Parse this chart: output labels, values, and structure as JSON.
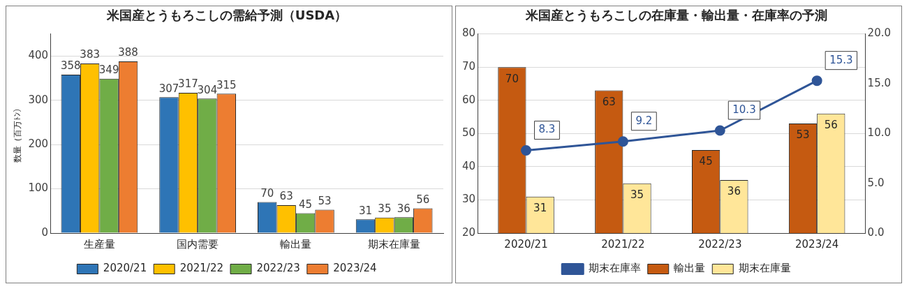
{
  "chart_data": [
    {
      "type": "bar",
      "title": "米国産とうもろこしの需給予測（USDA）",
      "ylabel": "数量（百万ﾄﾝ）",
      "categories": [
        "生産量",
        "国内需要",
        "輸出量",
        "期末在庫量"
      ],
      "series": [
        {
          "name": "2020/21",
          "color": "#2e75b6",
          "values": [
            358,
            307,
            70,
            31
          ]
        },
        {
          "name": "2021/22",
          "color": "#ffc000",
          "values": [
            383,
            317,
            63,
            35
          ]
        },
        {
          "name": "2022/23",
          "color": "#70ad47",
          "values": [
            349,
            304,
            45,
            36
          ]
        },
        {
          "name": "2023/24",
          "color": "#ed7d31",
          "values": [
            388,
            315,
            53,
            56
          ]
        }
      ],
      "ylim": [
        0,
        450
      ],
      "yticks": [
        0,
        100,
        200,
        300,
        400
      ],
      "grid": "y",
      "legend": "bottom",
      "data_labels": true
    },
    {
      "type": "bar",
      "title": "米国産とうもろこしの在庫量・輸出量・在庫率の予測",
      "categories": [
        "2020/21",
        "2021/22",
        "2022/23",
        "2023/24"
      ],
      "series": [
        {
          "name": "輸出量",
          "color": "#c55a11",
          "values": [
            70,
            63,
            45,
            53
          ]
        },
        {
          "name": "期末在庫量",
          "color": "#ffe699",
          "values": [
            31,
            35,
            36,
            56
          ]
        },
        {
          "name": "期末在庫率",
          "type": "line",
          "axis": "y2",
          "color": "#2f5597",
          "values": [
            8.3,
            9.2,
            10.3,
            15.3
          ]
        }
      ],
      "ylim": [
        20,
        80
      ],
      "yticks": [
        20,
        30,
        40,
        50,
        60,
        70,
        80
      ],
      "y2lim": [
        0,
        20
      ],
      "y2ticks": [
        {
          "value": 0,
          "label": "0.0"
        },
        {
          "value": 5,
          "label": "5.0"
        },
        {
          "value": 10,
          "label": "10.0"
        },
        {
          "value": 15,
          "label": "15.0"
        },
        {
          "value": 20,
          "label": "20.0"
        }
      ],
      "grid": "y",
      "legend": "bottom",
      "marker": "circle",
      "line_style": "solid",
      "data_labels": true
    }
  ]
}
